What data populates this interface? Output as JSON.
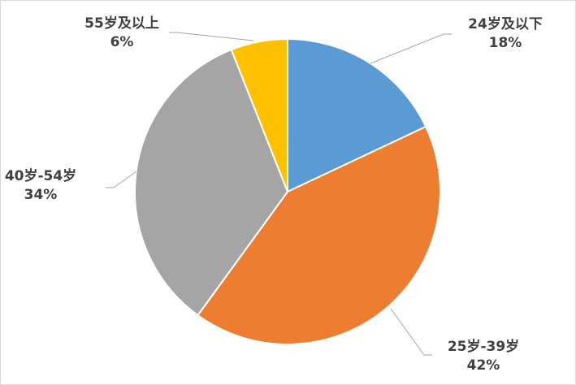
{
  "chart_data": {
    "type": "pie",
    "title": "",
    "slices": [
      {
        "category": "24岁及以下",
        "value": 18,
        "label": "18%",
        "color": "#5b9bd5"
      },
      {
        "category": "25岁-39岁",
        "value": 42,
        "label": "42%",
        "color": "#ed7d31"
      },
      {
        "category": "40岁-54岁",
        "value": 34,
        "label": "34%",
        "color": "#a5a5a5"
      },
      {
        "category": "55岁及以上",
        "value": 6,
        "label": "6%",
        "color": "#ffc000"
      }
    ],
    "legend": "none",
    "label_position": "outside-with-leader-lines"
  }
}
